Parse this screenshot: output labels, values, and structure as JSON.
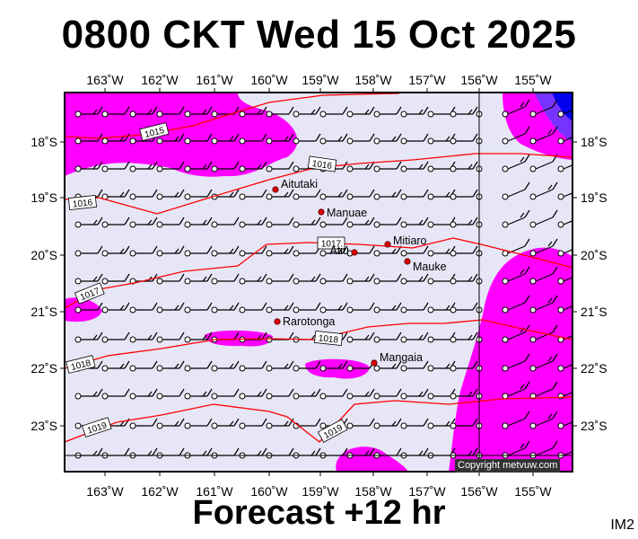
{
  "header": {
    "title": "0800 CKT Wed 15 Oct 2025"
  },
  "footer": {
    "forecast": "Forecast +12 hr",
    "corner_code": "IM2"
  },
  "copyright": "Copyright metvuw.com",
  "axes": {
    "lon_labels": [
      "163˚W",
      "162˚W",
      "161˚W",
      "160˚W",
      "159˚W",
      "158˚W",
      "157˚W",
      "156˚W",
      "155˚W"
    ],
    "lat_labels": [
      "18˚S",
      "19˚S",
      "20˚S",
      "21˚S",
      "22˚S",
      "23˚S"
    ]
  },
  "places": [
    {
      "name": "Aitutaki"
    },
    {
      "name": "Manuae"
    },
    {
      "name": "Mitiaro"
    },
    {
      "name": "Atiu"
    },
    {
      "name": "Mauke"
    },
    {
      "name": "Rarotonga"
    },
    {
      "name": "Mangaia"
    }
  ],
  "isobars": [
    {
      "label": "1015"
    },
    {
      "label": "1016"
    },
    {
      "label": "1016"
    },
    {
      "label": "1017"
    },
    {
      "label": "1017"
    },
    {
      "label": "1018"
    },
    {
      "label": "1018"
    },
    {
      "label": "1019"
    },
    {
      "label": "1019"
    }
  ],
  "colors": {
    "background": "#e6e6f6",
    "rain": "#ff00ff",
    "heavy_rain": "#7733ff",
    "extreme_rain": "#0000ee",
    "isobar": "#ff0000",
    "place_dot": "#dd0000"
  }
}
